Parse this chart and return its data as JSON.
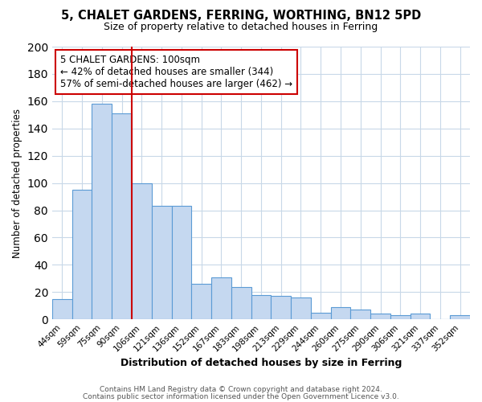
{
  "title": "5, CHALET GARDENS, FERRING, WORTHING, BN12 5PD",
  "subtitle": "Size of property relative to detached houses in Ferring",
  "xlabel": "Distribution of detached houses by size in Ferring",
  "ylabel": "Number of detached properties",
  "categories": [
    "44sqm",
    "59sqm",
    "75sqm",
    "90sqm",
    "106sqm",
    "121sqm",
    "136sqm",
    "152sqm",
    "167sqm",
    "183sqm",
    "198sqm",
    "213sqm",
    "229sqm",
    "244sqm",
    "260sqm",
    "275sqm",
    "290sqm",
    "306sqm",
    "321sqm",
    "337sqm",
    "352sqm"
  ],
  "values": [
    15,
    95,
    158,
    151,
    100,
    83,
    83,
    26,
    31,
    24,
    18,
    17,
    16,
    5,
    9,
    7,
    4,
    3,
    4,
    0,
    3
  ],
  "bar_color": "#c5d8f0",
  "bar_edge_color": "#5b9bd5",
  "vline_position": 3.5,
  "vline_color": "#cc0000",
  "annotation_title": "5 CHALET GARDENS: 100sqm",
  "annotation_line1": "← 42% of detached houses are smaller (344)",
  "annotation_line2": "57% of semi-detached houses are larger (462) →",
  "annotation_box_edge": "#cc0000",
  "ylim": [
    0,
    200
  ],
  "yticks": [
    0,
    20,
    40,
    60,
    80,
    100,
    120,
    140,
    160,
    180,
    200
  ],
  "footer1": "Contains HM Land Registry data © Crown copyright and database right 2024.",
  "footer2": "Contains public sector information licensed under the Open Government Licence v3.0.",
  "background_color": "#ffffff",
  "grid_color": "#c8d8e8"
}
